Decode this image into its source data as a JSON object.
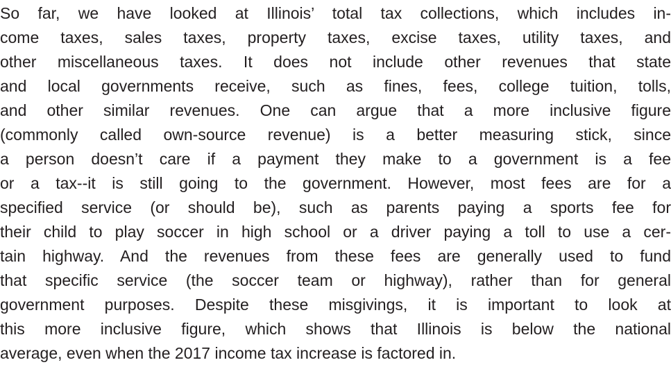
{
  "paragraph": {
    "lines": [
      "So far, we have looked at Illinois’ total tax collections, which includes in-",
      "come taxes, sales taxes, property taxes, excise taxes, utility taxes, and",
      "other miscellaneous taxes. It does not include other revenues that state",
      "and local governments receive, such as fines, fees, college tuition, tolls,",
      "and other similar revenues. One can argue that a more inclusive figure",
      "(commonly called own-source revenue) is a better measuring stick, since",
      "a person doesn’t care if a payment they make to a government is a fee",
      "or a tax--it is still going to the government. However, most fees are for a",
      "specified service (or should be), such as parents paying a sports fee for",
      "their child to play soccer in high school or a driver paying a toll to use a cer-",
      "tain highway. And the revenues from these fees are generally used to fund",
      "that specific service (the soccer team or highway), rather than for general",
      "government purposes. Despite these misgivings, it is important to look at",
      "this more inclusive figure, which shows that Illinois is below the national",
      "average, even when the 2017 income tax increase is factored in."
    ]
  }
}
